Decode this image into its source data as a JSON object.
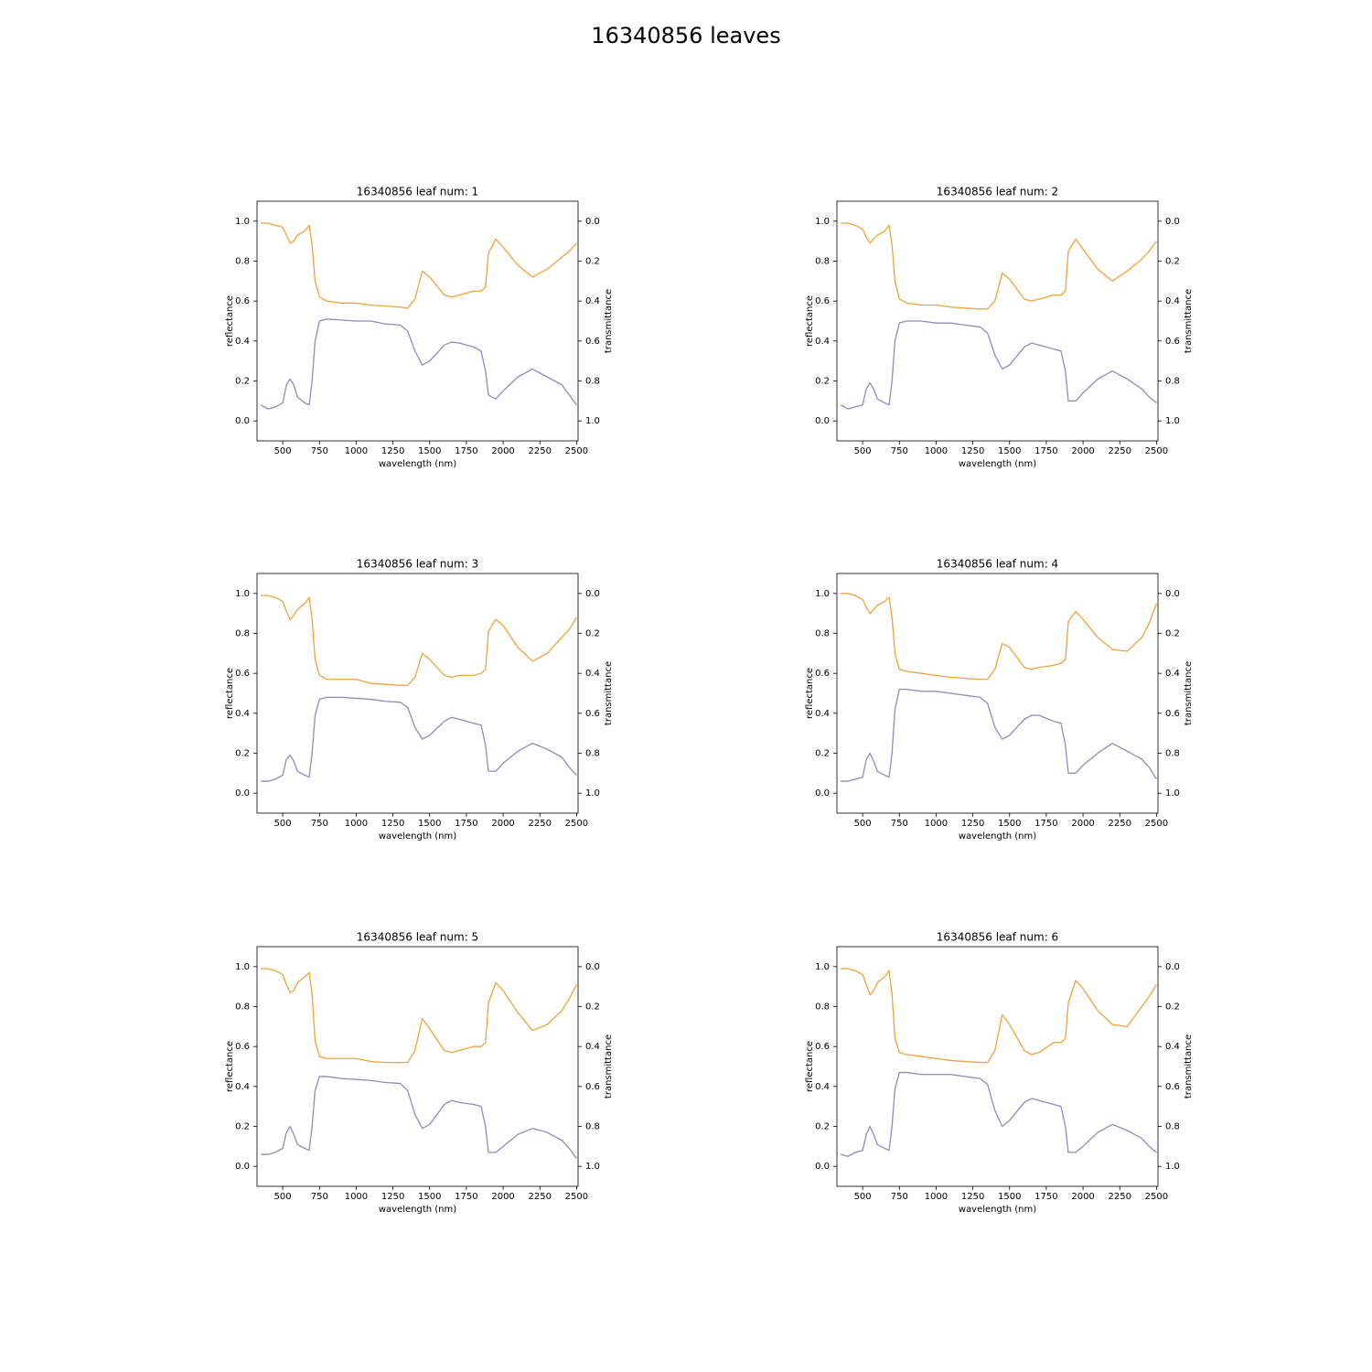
{
  "title": "16340856 leaves",
  "chart_data": [
    {
      "type": "line",
      "title": "16340856 leaf num: 1",
      "xlabel": "wavelength (nm)",
      "ylabel": "reflectance",
      "y2label": "transmittance",
      "x": [
        350,
        400,
        450,
        500,
        525,
        550,
        575,
        600,
        650,
        680,
        700,
        720,
        750,
        800,
        900,
        1000,
        1100,
        1200,
        1300,
        1350,
        1400,
        1450,
        1500,
        1600,
        1650,
        1700,
        1800,
        1850,
        1880,
        1900,
        1950,
        2000,
        2100,
        2200,
        2300,
        2400,
        2450,
        2500
      ],
      "series": [
        {
          "name": "reflectance",
          "color": "#8f8ac0",
          "values": [
            0.08,
            0.06,
            0.07,
            0.09,
            0.18,
            0.21,
            0.18,
            0.12,
            0.09,
            0.08,
            0.2,
            0.4,
            0.5,
            0.51,
            0.505,
            0.5,
            0.5,
            0.485,
            0.48,
            0.45,
            0.35,
            0.28,
            0.3,
            0.38,
            0.395,
            0.39,
            0.37,
            0.35,
            0.25,
            0.13,
            0.11,
            0.15,
            0.22,
            0.26,
            0.22,
            0.18,
            0.13,
            0.08
          ]
        },
        {
          "name": "transmittance",
          "color": "#eea23c",
          "axis": "y2",
          "values": [
            0.01,
            0.01,
            0.02,
            0.03,
            0.07,
            0.11,
            0.1,
            0.07,
            0.05,
            0.02,
            0.12,
            0.3,
            0.38,
            0.4,
            0.41,
            0.41,
            0.42,
            0.425,
            0.43,
            0.435,
            0.39,
            0.25,
            0.28,
            0.37,
            0.38,
            0.37,
            0.35,
            0.35,
            0.33,
            0.16,
            0.09,
            0.13,
            0.22,
            0.28,
            0.24,
            0.18,
            0.15,
            0.11
          ]
        }
      ],
      "xlim": [
        325,
        2510
      ],
      "xticks": [
        500,
        750,
        1000,
        1250,
        1500,
        1750,
        2000,
        2250,
        2500
      ],
      "ylim": [
        -0.1,
        1.1
      ],
      "yticks": [
        {
          "value": 0,
          "label": "0.0"
        },
        0.2,
        0.4,
        0.6,
        0.8,
        {
          "value": 1,
          "label": "1.0"
        }
      ],
      "y2lim": [
        1.1,
        -0.1
      ],
      "y2ticks": [
        {
          "value": 0,
          "label": "0.0"
        },
        0.2,
        0.4,
        0.6,
        0.8,
        {
          "value": 1,
          "label": "1.0"
        }
      ]
    },
    {
      "type": "line",
      "title": "16340856 leaf num: 2",
      "xlabel": "wavelength (nm)",
      "ylabel": "reflectance",
      "y2label": "transmittance",
      "x": [
        350,
        400,
        450,
        500,
        525,
        550,
        575,
        600,
        650,
        680,
        700,
        720,
        750,
        800,
        900,
        1000,
        1100,
        1200,
        1300,
        1350,
        1400,
        1450,
        1500,
        1600,
        1650,
        1700,
        1800,
        1850,
        1880,
        1900,
        1950,
        2000,
        2100,
        2200,
        2300,
        2400,
        2450,
        2500
      ],
      "series": [
        {
          "name": "reflectance",
          "color": "#8f8ac0",
          "values": [
            0.08,
            0.06,
            0.07,
            0.08,
            0.16,
            0.19,
            0.16,
            0.11,
            0.09,
            0.08,
            0.2,
            0.4,
            0.49,
            0.5,
            0.5,
            0.49,
            0.49,
            0.48,
            0.47,
            0.44,
            0.33,
            0.26,
            0.28,
            0.37,
            0.39,
            0.38,
            0.36,
            0.35,
            0.25,
            0.1,
            0.1,
            0.14,
            0.21,
            0.25,
            0.21,
            0.16,
            0.12,
            0.09
          ]
        },
        {
          "name": "transmittance",
          "color": "#eea23c",
          "axis": "y2",
          "values": [
            0.01,
            0.01,
            0.02,
            0.04,
            0.08,
            0.11,
            0.09,
            0.07,
            0.05,
            0.02,
            0.12,
            0.3,
            0.39,
            0.41,
            0.42,
            0.42,
            0.43,
            0.435,
            0.44,
            0.44,
            0.4,
            0.26,
            0.29,
            0.39,
            0.4,
            0.39,
            0.37,
            0.37,
            0.35,
            0.15,
            0.09,
            0.14,
            0.24,
            0.3,
            0.25,
            0.19,
            0.15,
            0.1
          ]
        }
      ],
      "xlim": [
        325,
        2510
      ],
      "xticks": [
        500,
        750,
        1000,
        1250,
        1500,
        1750,
        2000,
        2250,
        2500
      ],
      "ylim": [
        -0.1,
        1.1
      ],
      "yticks": [
        {
          "value": 0,
          "label": "0.0"
        },
        0.2,
        0.4,
        0.6,
        0.8,
        {
          "value": 1,
          "label": "1.0"
        }
      ],
      "y2lim": [
        1.1,
        -0.1
      ],
      "y2ticks": [
        {
          "value": 0,
          "label": "0.0"
        },
        0.2,
        0.4,
        0.6,
        0.8,
        {
          "value": 1,
          "label": "1.0"
        }
      ]
    },
    {
      "type": "line",
      "title": "16340856 leaf num: 3",
      "xlabel": "wavelength (nm)",
      "ylabel": "reflectance",
      "y2label": "transmittance",
      "x": [
        350,
        400,
        450,
        500,
        525,
        550,
        575,
        600,
        650,
        680,
        700,
        720,
        750,
        800,
        900,
        1000,
        1100,
        1200,
        1300,
        1350,
        1400,
        1450,
        1500,
        1600,
        1650,
        1700,
        1800,
        1850,
        1880,
        1900,
        1950,
        2000,
        2100,
        2200,
        2300,
        2400,
        2450,
        2500
      ],
      "series": [
        {
          "name": "reflectance",
          "color": "#8f8ac0",
          "values": [
            0.06,
            0.06,
            0.07,
            0.09,
            0.17,
            0.19,
            0.16,
            0.11,
            0.09,
            0.08,
            0.2,
            0.39,
            0.47,
            0.48,
            0.48,
            0.475,
            0.47,
            0.46,
            0.455,
            0.43,
            0.33,
            0.27,
            0.29,
            0.36,
            0.38,
            0.37,
            0.35,
            0.34,
            0.24,
            0.11,
            0.11,
            0.15,
            0.21,
            0.25,
            0.22,
            0.18,
            0.13,
            0.09
          ]
        },
        {
          "name": "transmittance",
          "color": "#eea23c",
          "axis": "y2",
          "values": [
            0.01,
            0.01,
            0.02,
            0.04,
            0.09,
            0.13,
            0.11,
            0.08,
            0.05,
            0.02,
            0.13,
            0.33,
            0.41,
            0.43,
            0.43,
            0.43,
            0.45,
            0.455,
            0.46,
            0.46,
            0.42,
            0.3,
            0.33,
            0.41,
            0.42,
            0.41,
            0.41,
            0.4,
            0.38,
            0.19,
            0.13,
            0.16,
            0.27,
            0.34,
            0.3,
            0.22,
            0.18,
            0.12
          ]
        }
      ],
      "xlim": [
        325,
        2510
      ],
      "xticks": [
        500,
        750,
        1000,
        1250,
        1500,
        1750,
        2000,
        2250,
        2500
      ],
      "ylim": [
        -0.1,
        1.1
      ],
      "yticks": [
        {
          "value": 0,
          "label": "0.0"
        },
        0.2,
        0.4,
        0.6,
        0.8,
        {
          "value": 1,
          "label": "1.0"
        }
      ],
      "y2lim": [
        1.1,
        -0.1
      ],
      "y2ticks": [
        {
          "value": 0,
          "label": "0.0"
        },
        0.2,
        0.4,
        0.6,
        0.8,
        {
          "value": 1,
          "label": "1.0"
        }
      ]
    },
    {
      "type": "line",
      "title": "16340856 leaf num: 4",
      "xlabel": "wavelength (nm)",
      "ylabel": "reflectance",
      "y2label": "transmittance",
      "x": [
        350,
        400,
        450,
        500,
        525,
        550,
        575,
        600,
        650,
        680,
        700,
        720,
        750,
        800,
        900,
        1000,
        1100,
        1200,
        1300,
        1350,
        1400,
        1450,
        1500,
        1600,
        1650,
        1700,
        1800,
        1850,
        1880,
        1900,
        1950,
        2000,
        2100,
        2200,
        2300,
        2400,
        2450,
        2500
      ],
      "series": [
        {
          "name": "reflectance",
          "color": "#8f8ac0",
          "values": [
            0.06,
            0.06,
            0.07,
            0.08,
            0.17,
            0.2,
            0.16,
            0.11,
            0.09,
            0.08,
            0.2,
            0.42,
            0.52,
            0.52,
            0.51,
            0.51,
            0.5,
            0.49,
            0.48,
            0.45,
            0.33,
            0.27,
            0.29,
            0.37,
            0.39,
            0.39,
            0.36,
            0.35,
            0.24,
            0.1,
            0.1,
            0.14,
            0.2,
            0.25,
            0.21,
            0.17,
            0.13,
            0.07
          ]
        },
        {
          "name": "transmittance",
          "color": "#eea23c",
          "axis": "y2",
          "values": [
            0.0,
            0.0,
            0.01,
            0.03,
            0.07,
            0.1,
            0.08,
            0.06,
            0.04,
            0.02,
            0.12,
            0.3,
            0.38,
            0.39,
            0.4,
            0.41,
            0.42,
            0.425,
            0.43,
            0.43,
            0.38,
            0.25,
            0.27,
            0.37,
            0.38,
            0.37,
            0.36,
            0.35,
            0.33,
            0.14,
            0.09,
            0.13,
            0.22,
            0.28,
            0.29,
            0.22,
            0.15,
            0.05
          ]
        }
      ],
      "xlim": [
        325,
        2510
      ],
      "xticks": [
        500,
        750,
        1000,
        1250,
        1500,
        1750,
        2000,
        2250,
        2500
      ],
      "ylim": [
        -0.1,
        1.1
      ],
      "yticks": [
        {
          "value": 0,
          "label": "0.0"
        },
        0.2,
        0.4,
        0.6,
        0.8,
        {
          "value": 1,
          "label": "1.0"
        }
      ],
      "y2lim": [
        1.1,
        -0.1
      ],
      "y2ticks": [
        {
          "value": 0,
          "label": "0.0"
        },
        0.2,
        0.4,
        0.6,
        0.8,
        {
          "value": 1,
          "label": "1.0"
        }
      ]
    },
    {
      "type": "line",
      "title": "16340856 leaf num: 5",
      "xlabel": "wavelength (nm)",
      "ylabel": "reflectance",
      "y2label": "transmittance",
      "x": [
        350,
        400,
        450,
        500,
        525,
        550,
        575,
        600,
        650,
        680,
        700,
        720,
        750,
        800,
        900,
        1000,
        1100,
        1200,
        1300,
        1350,
        1400,
        1450,
        1500,
        1600,
        1650,
        1700,
        1800,
        1850,
        1880,
        1900,
        1950,
        2000,
        2100,
        2200,
        2300,
        2400,
        2450,
        2500
      ],
      "series": [
        {
          "name": "reflectance",
          "color": "#8f8ac0",
          "values": [
            0.06,
            0.06,
            0.07,
            0.09,
            0.17,
            0.2,
            0.16,
            0.11,
            0.09,
            0.08,
            0.2,
            0.38,
            0.45,
            0.45,
            0.44,
            0.435,
            0.43,
            0.42,
            0.415,
            0.38,
            0.26,
            0.19,
            0.21,
            0.31,
            0.33,
            0.32,
            0.31,
            0.3,
            0.2,
            0.07,
            0.07,
            0.1,
            0.16,
            0.19,
            0.17,
            0.13,
            0.09,
            0.04
          ]
        },
        {
          "name": "transmittance",
          "color": "#eea23c",
          "axis": "y2",
          "values": [
            0.01,
            0.01,
            0.02,
            0.04,
            0.09,
            0.13,
            0.12,
            0.08,
            0.05,
            0.03,
            0.14,
            0.37,
            0.45,
            0.46,
            0.46,
            0.46,
            0.475,
            0.48,
            0.48,
            0.48,
            0.42,
            0.26,
            0.31,
            0.42,
            0.43,
            0.42,
            0.4,
            0.4,
            0.38,
            0.18,
            0.08,
            0.12,
            0.23,
            0.32,
            0.29,
            0.22,
            0.16,
            0.09
          ]
        }
      ],
      "xlim": [
        325,
        2510
      ],
      "xticks": [
        500,
        750,
        1000,
        1250,
        1500,
        1750,
        2000,
        2250,
        2500
      ],
      "ylim": [
        -0.1,
        1.1
      ],
      "yticks": [
        {
          "value": 0,
          "label": "0.0"
        },
        0.2,
        0.4,
        0.6,
        0.8,
        {
          "value": 1,
          "label": "1.0"
        }
      ],
      "y2lim": [
        1.1,
        -0.1
      ],
      "y2ticks": [
        {
          "value": 0,
          "label": "0.0"
        },
        0.2,
        0.4,
        0.6,
        0.8,
        {
          "value": 1,
          "label": "1.0"
        }
      ]
    },
    {
      "type": "line",
      "title": "16340856 leaf num: 6",
      "xlabel": "wavelength (nm)",
      "ylabel": "reflectance",
      "y2label": "transmittance",
      "x": [
        350,
        400,
        450,
        500,
        525,
        550,
        575,
        600,
        650,
        680,
        700,
        720,
        750,
        800,
        900,
        1000,
        1100,
        1200,
        1300,
        1350,
        1400,
        1450,
        1500,
        1600,
        1650,
        1700,
        1800,
        1850,
        1880,
        1900,
        1950,
        2000,
        2100,
        2200,
        2300,
        2400,
        2450,
        2500
      ],
      "series": [
        {
          "name": "reflectance",
          "color": "#8f8ac0",
          "values": [
            0.06,
            0.05,
            0.07,
            0.08,
            0.16,
            0.2,
            0.16,
            0.11,
            0.09,
            0.08,
            0.2,
            0.39,
            0.47,
            0.47,
            0.46,
            0.46,
            0.46,
            0.45,
            0.44,
            0.41,
            0.28,
            0.2,
            0.23,
            0.32,
            0.34,
            0.33,
            0.31,
            0.3,
            0.2,
            0.07,
            0.07,
            0.1,
            0.17,
            0.21,
            0.18,
            0.14,
            0.1,
            0.07
          ]
        },
        {
          "name": "transmittance",
          "color": "#eea23c",
          "axis": "y2",
          "values": [
            0.01,
            0.01,
            0.02,
            0.04,
            0.09,
            0.14,
            0.12,
            0.08,
            0.05,
            0.02,
            0.14,
            0.36,
            0.43,
            0.44,
            0.45,
            0.46,
            0.47,
            0.475,
            0.48,
            0.48,
            0.42,
            0.24,
            0.29,
            0.42,
            0.44,
            0.43,
            0.38,
            0.38,
            0.36,
            0.18,
            0.07,
            0.11,
            0.22,
            0.29,
            0.3,
            0.2,
            0.15,
            0.09
          ]
        }
      ],
      "xlim": [
        325,
        2510
      ],
      "xticks": [
        500,
        750,
        1000,
        1250,
        1500,
        1750,
        2000,
        2250,
        2500
      ],
      "ylim": [
        -0.1,
        1.1
      ],
      "yticks": [
        {
          "value": 0,
          "label": "0.0"
        },
        0.2,
        0.4,
        0.6,
        0.8,
        {
          "value": 1,
          "label": "1.0"
        }
      ],
      "y2lim": [
        1.1,
        -0.1
      ],
      "y2ticks": [
        {
          "value": 0,
          "label": "0.0"
        },
        0.2,
        0.4,
        0.6,
        0.8,
        {
          "value": 1,
          "label": "1.0"
        }
      ]
    }
  ]
}
